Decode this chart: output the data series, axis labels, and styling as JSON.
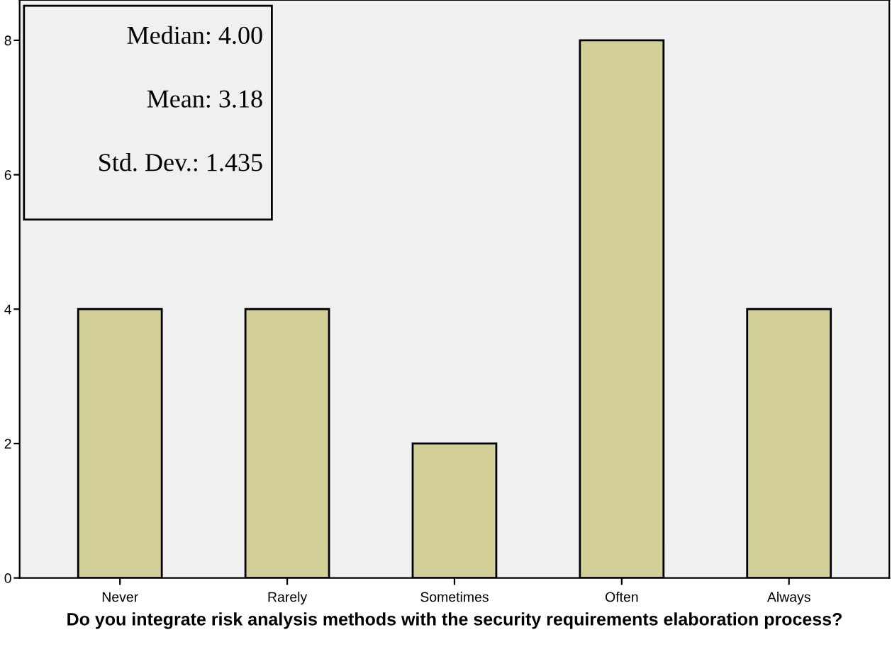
{
  "chart_data": {
    "type": "bar",
    "xlabel": "Do you integrate risk analysis methods with the security requirements elaboration process?",
    "categories": [
      "Never",
      "Rarely",
      "Sometimes",
      "Often",
      "Always"
    ],
    "values": [
      4,
      4,
      2,
      8,
      4
    ],
    "color": "#d3cf98",
    "ylim": [
      0,
      8.6
    ],
    "yticks": [
      0,
      2,
      4,
      6,
      8
    ],
    "grid": false,
    "annotations": [
      "Median: 4.00",
      "Mean: 3.18",
      "Std. Dev.: 1.435"
    ]
  }
}
